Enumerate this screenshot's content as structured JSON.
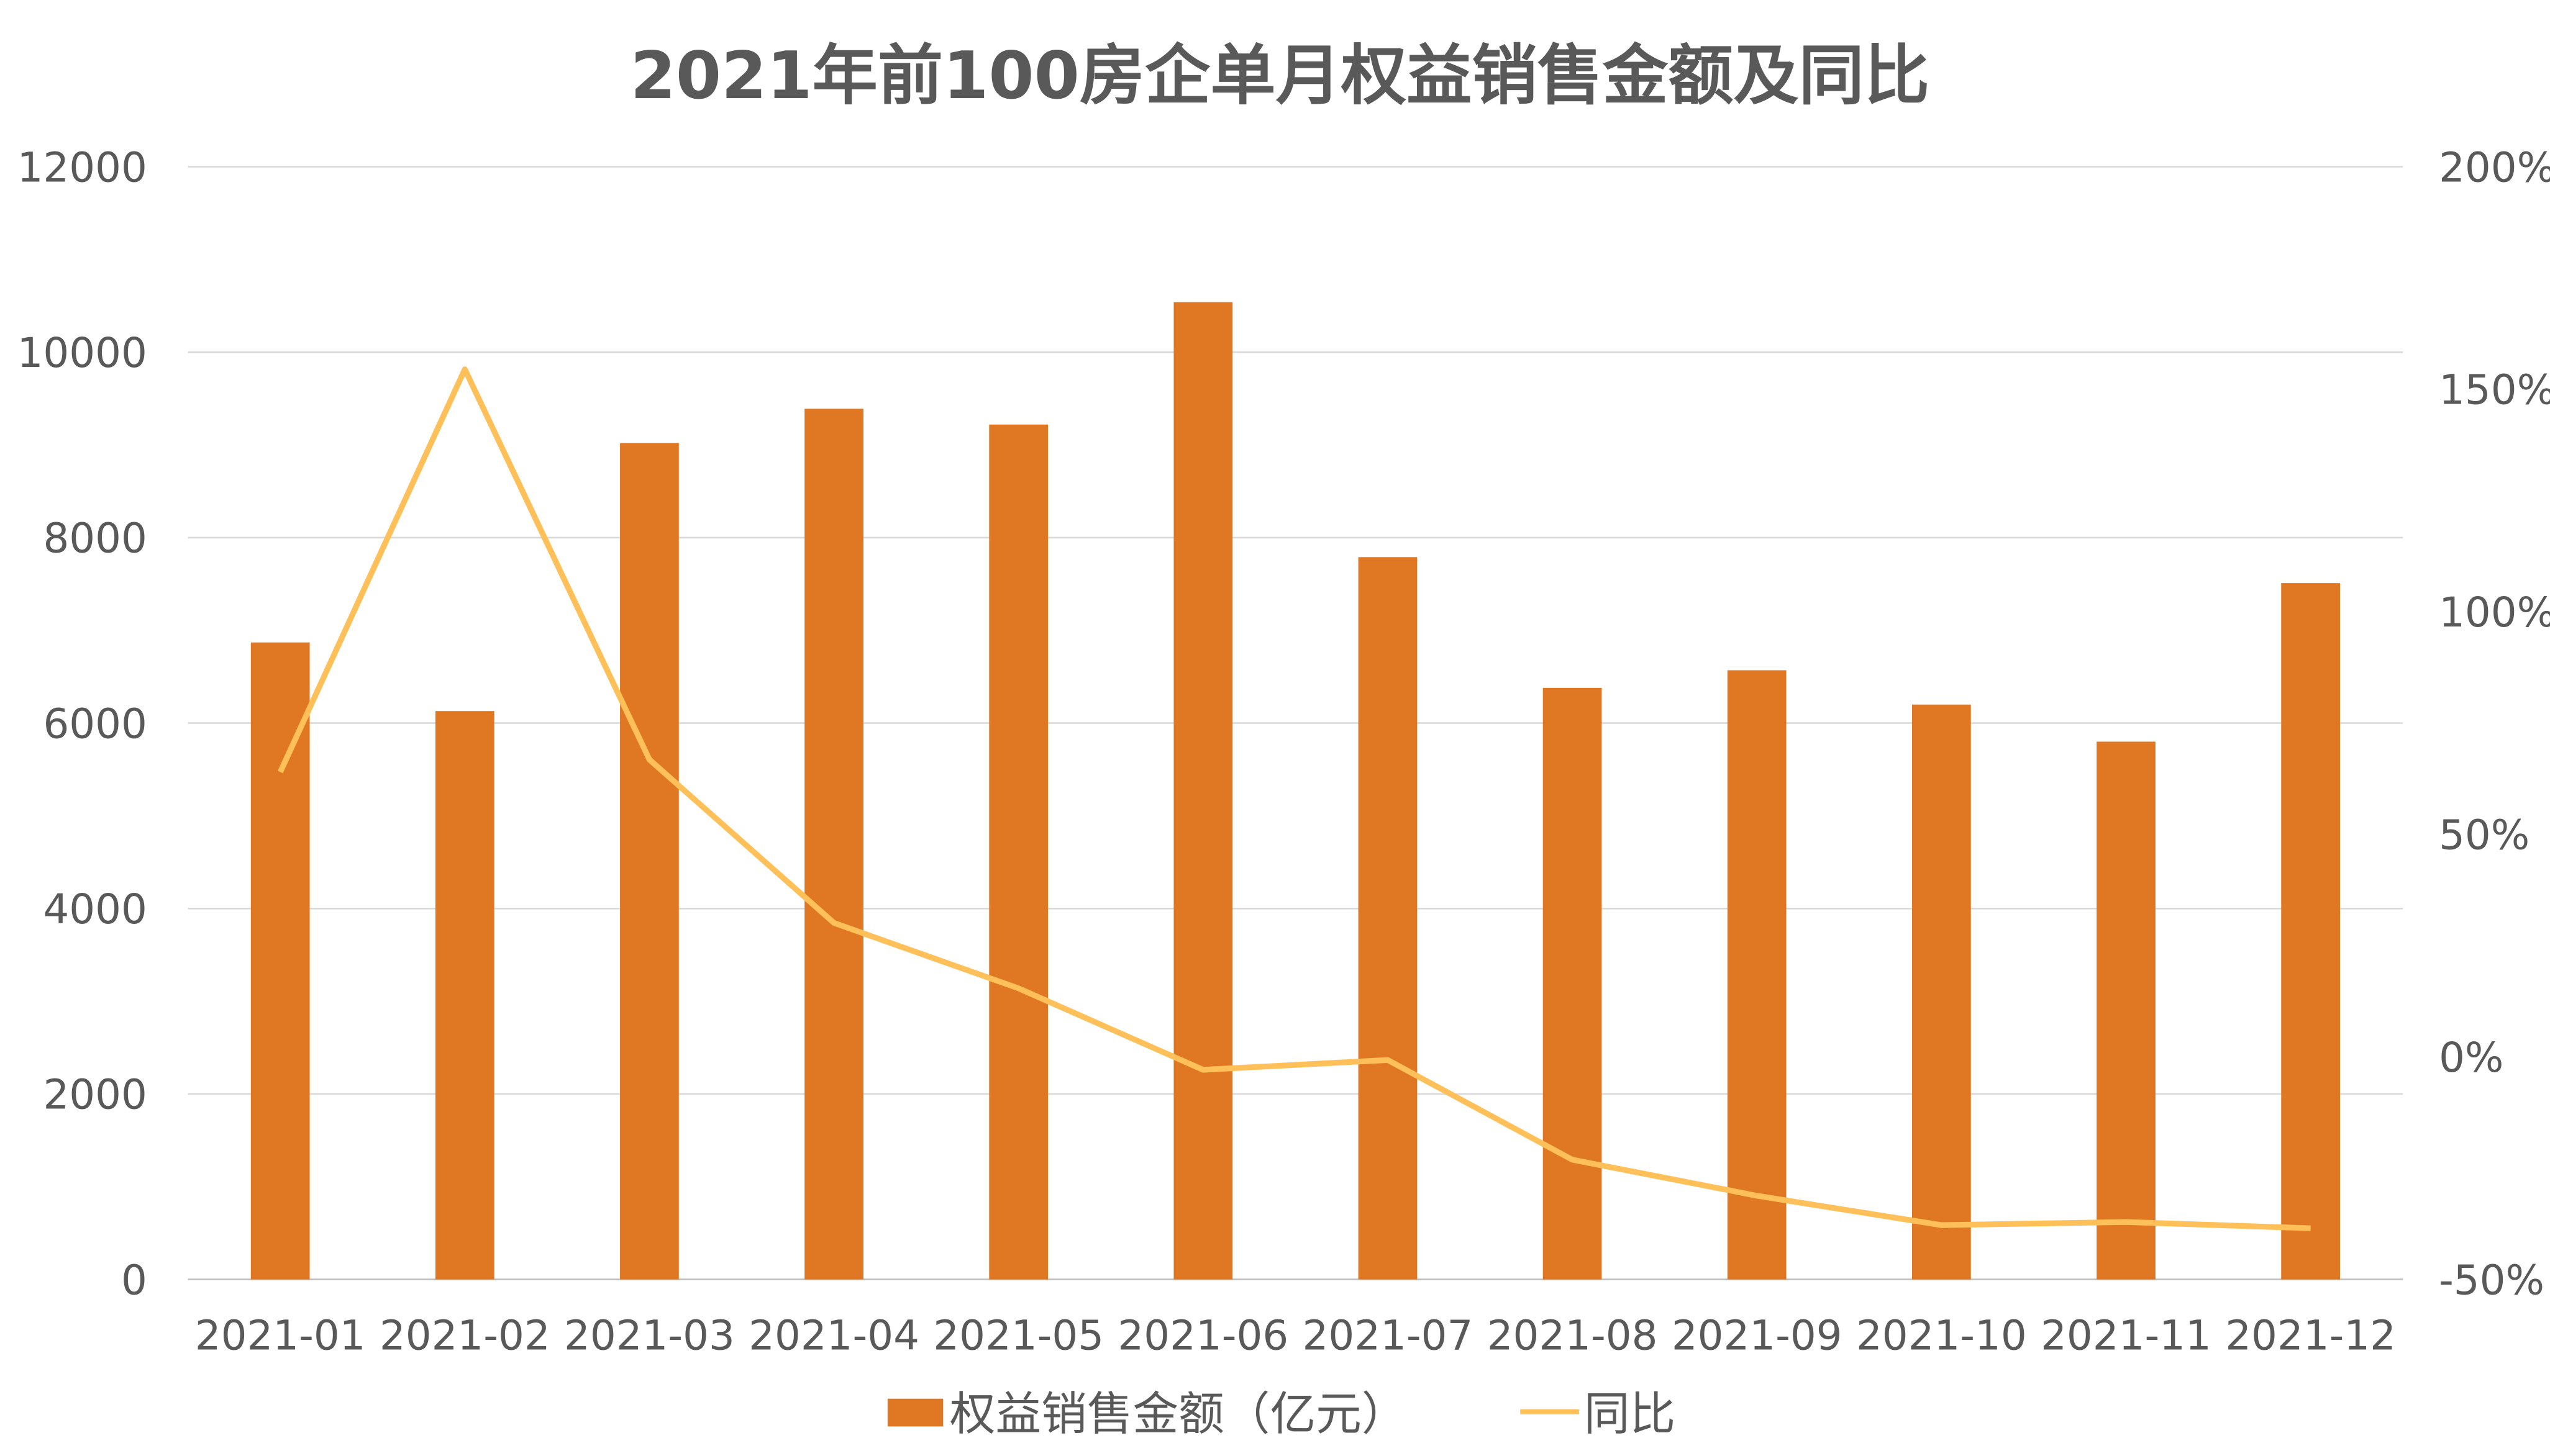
{
  "chart_data": {
    "type": "bar+line",
    "title": "2021年前100房企单月权益销售金额及同比",
    "categories": [
      "2021-01",
      "2021-02",
      "2021-03",
      "2021-04",
      "2021-05",
      "2021-06",
      "2021-07",
      "2021-08",
      "2021-09",
      "2021-10",
      "2021-11",
      "2021-12"
    ],
    "series": [
      {
        "name": "权益销售金额（亿元）",
        "type": "bar",
        "axis": "left",
        "color": "#E07722",
        "values": [
          6870,
          6130,
          9020,
          9390,
          9220,
          10540,
          7790,
          6380,
          6570,
          6200,
          5800,
          7510
        ]
      },
      {
        "name": "同比",
        "type": "line",
        "axis": "right",
        "color": "#FFC05A",
        "values": [
          0.64,
          1.545,
          0.668,
          0.301,
          0.154,
          -0.029,
          -0.007,
          -0.231,
          -0.312,
          -0.378,
          -0.371,
          -0.385
        ]
      }
    ],
    "left_axis": {
      "ylim": [
        0,
        12000
      ],
      "ticks": [
        "0",
        "2000",
        "4000",
        "6000",
        "8000",
        "10000",
        "12000"
      ]
    },
    "right_axis": {
      "ylim": [
        -0.5,
        2.0
      ],
      "ticks": [
        "-50%",
        "0%",
        "50%",
        "100%",
        "150%",
        "200%"
      ]
    },
    "grid": true,
    "legend": "bottom"
  }
}
